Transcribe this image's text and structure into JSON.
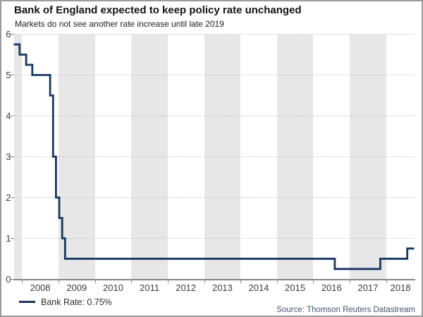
{
  "chart_data": {
    "type": "line",
    "title": "Bank of England expected to keep policy rate unchanged",
    "subtitle": "Markets do not see another rate increase until late 2019",
    "legend_label": "Bank Rate: 0.75%",
    "source": "Source: Thomson Reuters Datastream",
    "line_color": "#17375e",
    "band_color": "#e7e7e7",
    "grid": "dotted horizontal lines at each integer",
    "legend_position": "bottom-left",
    "x_axis": {
      "min": 2007.77,
      "max": 2018.79,
      "tick_years": [
        2008,
        2009,
        2010,
        2011,
        2012,
        2013,
        2014,
        2015,
        2016,
        2017,
        2018
      ]
    },
    "y_axis": {
      "min": 0,
      "max": 6,
      "ticks": [
        0,
        1,
        2,
        3,
        4,
        5,
        6
      ]
    },
    "shaded_year_bands": [
      [
        2007.77,
        2008
      ],
      [
        2009,
        2010
      ],
      [
        2011,
        2012
      ],
      [
        2013,
        2014
      ],
      [
        2015,
        2016
      ],
      [
        2017,
        2018
      ]
    ],
    "series": [
      {
        "name": "Bank Rate (%)",
        "steps": [
          {
            "t": 2007.77,
            "v": 5.75
          },
          {
            "t": 2007.93,
            "v": 5.5
          },
          {
            "t": 2008.11,
            "v": 5.25
          },
          {
            "t": 2008.28,
            "v": 5.0
          },
          {
            "t": 2008.77,
            "v": 4.5
          },
          {
            "t": 2008.85,
            "v": 3.0
          },
          {
            "t": 2008.93,
            "v": 2.0
          },
          {
            "t": 2009.02,
            "v": 1.5
          },
          {
            "t": 2009.1,
            "v": 1.0
          },
          {
            "t": 2009.18,
            "v": 0.5
          },
          {
            "t": 2016.59,
            "v": 0.25
          },
          {
            "t": 2017.84,
            "v": 0.5
          },
          {
            "t": 2018.58,
            "v": 0.75
          }
        ],
        "end_t": 2018.77
      }
    ]
  }
}
